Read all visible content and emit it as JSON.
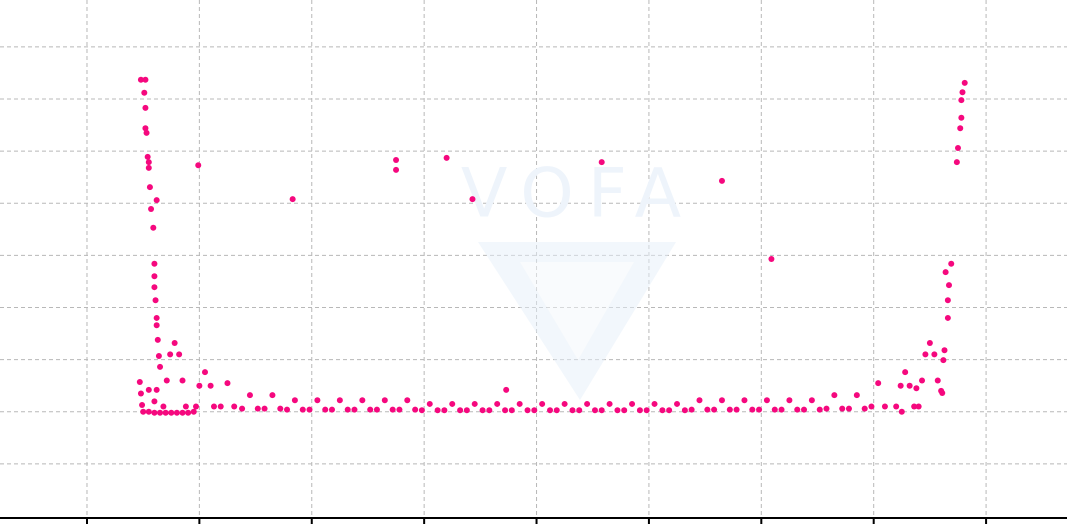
{
  "chart_data": {
    "type": "scatter",
    "watermark": "VOFA",
    "grid": true,
    "xlim": [
      -0.774,
      8.72
    ],
    "xticks": [
      0,
      1,
      2,
      3,
      4,
      5,
      6,
      7,
      8
    ],
    "ylim": [
      0,
      9.9
    ],
    "yticks": [
      1,
      2,
      3,
      4,
      5,
      6,
      7,
      8,
      9
    ],
    "series": [
      {
        "color": "#f5087e",
        "x": [
          0.48,
          0.52,
          0.51,
          0.52,
          0.52,
          0.53,
          0.54,
          0.55,
          0.55,
          0.56,
          0.57,
          0.62,
          0.59,
          0.6,
          0.6,
          0.6,
          0.61,
          0.62,
          0.62,
          0.63,
          0.64,
          0.65,
          7.81,
          7.79,
          7.78,
          7.78,
          7.77,
          7.75,
          7.74,
          7.69,
          7.67,
          7.66,
          7.66,
          7.64,
          7.63,
          7.62,
          7.61,
          0.99,
          1.83,
          2.75,
          2.75,
          3.2,
          3.43,
          4.58,
          5.65,
          6.09,
          3.73,
          0.47,
          0.48,
          0.49,
          0.5,
          0.55,
          0.6,
          0.65,
          0.7,
          0.75,
          0.8,
          0.85,
          0.9,
          0.95,
          0.55,
          0.62,
          0.6,
          0.68,
          0.71,
          0.74,
          0.78,
          0.82,
          0.85,
          0.88,
          0.97,
          1.0,
          1.05,
          1.1,
          1.13,
          1.19,
          1.25,
          1.31,
          7.4,
          7.43,
          7.46,
          7.5,
          7.54,
          7.57,
          7.6,
          7.2,
          7.24,
          7.28,
          7.32,
          7.36,
          6.98,
          7.04,
          7.1,
          7.25,
          7.38,
          1.38,
          1.45,
          1.52,
          1.58,
          1.65,
          1.72,
          1.78,
          1.85,
          1.92,
          1.98,
          2.05,
          2.12,
          2.18,
          2.25,
          2.32,
          2.38,
          2.45,
          2.52,
          2.58,
          2.65,
          2.72,
          2.78,
          2.85,
          2.92,
          2.98,
          3.05,
          3.12,
          3.18,
          3.25,
          3.32,
          3.38,
          3.45,
          3.52,
          3.58,
          3.65,
          3.72,
          3.78,
          3.85,
          3.92,
          3.98,
          4.05,
          4.12,
          4.18,
          4.25,
          4.32,
          4.38,
          4.45,
          4.52,
          4.58,
          4.65,
          4.72,
          4.78,
          4.85,
          4.92,
          4.98,
          5.05,
          5.12,
          5.18,
          5.25,
          5.32,
          5.38,
          5.45,
          5.52,
          5.58,
          5.65,
          5.72,
          5.78,
          5.85,
          5.92,
          5.98,
          6.05,
          6.12,
          6.18,
          6.25,
          6.32,
          6.38,
          6.45,
          6.52,
          6.58,
          6.65,
          6.72,
          6.78,
          6.85,
          6.92
        ],
        "values": [
          8.37,
          8.37,
          8.12,
          7.83,
          7.44,
          7.35,
          6.89,
          6.79,
          6.68,
          6.31,
          5.89,
          6.06,
          5.53,
          4.84,
          4.6,
          4.39,
          4.14,
          3.8,
          3.66,
          3.38,
          3.07,
          2.86,
          8.31,
          8.13,
          7.98,
          7.64,
          7.44,
          7.06,
          6.79,
          4.84,
          4.43,
          4.14,
          3.8,
          4.68,
          3.18,
          2.99,
          2.36,
          6.73,
          6.08,
          6.83,
          6.64,
          6.87,
          6.08,
          6.79,
          6.43,
          4.93,
          2.42,
          2.57,
          2.35,
          2.13,
          2.0,
          2.0,
          1.98,
          1.98,
          1.98,
          1.98,
          1.98,
          1.98,
          1.98,
          2.0,
          2.42,
          2.42,
          2.2,
          2.1,
          2.6,
          3.1,
          3.32,
          3.1,
          2.6,
          2.1,
          2.1,
          2.5,
          2.76,
          2.5,
          2.1,
          2.1,
          2.55,
          2.1,
          2.1,
          2.6,
          3.1,
          3.32,
          3.1,
          2.6,
          2.4,
          2.1,
          2.5,
          2.76,
          2.5,
          2.1,
          2.1,
          2.55,
          2.1,
          2.0,
          2.45,
          2.06,
          2.32,
          2.06,
          2.06,
          2.32,
          2.06,
          2.04,
          2.22,
          2.04,
          2.04,
          2.22,
          2.04,
          2.04,
          2.22,
          2.04,
          2.04,
          2.22,
          2.04,
          2.04,
          2.22,
          2.04,
          2.04,
          2.22,
          2.04,
          2.03,
          2.15,
          2.03,
          2.03,
          2.15,
          2.03,
          2.03,
          2.15,
          2.03,
          2.03,
          2.15,
          2.03,
          2.03,
          2.15,
          2.03,
          2.03,
          2.15,
          2.03,
          2.03,
          2.15,
          2.03,
          2.03,
          2.15,
          2.03,
          2.03,
          2.15,
          2.03,
          2.03,
          2.15,
          2.03,
          2.03,
          2.15,
          2.03,
          2.03,
          2.15,
          2.03,
          2.04,
          2.22,
          2.04,
          2.04,
          2.22,
          2.04,
          2.04,
          2.22,
          2.04,
          2.04,
          2.22,
          2.04,
          2.04,
          2.22,
          2.04,
          2.04,
          2.22,
          2.04,
          2.06,
          2.32,
          2.06,
          2.06,
          2.32,
          2.06
        ]
      }
    ]
  }
}
